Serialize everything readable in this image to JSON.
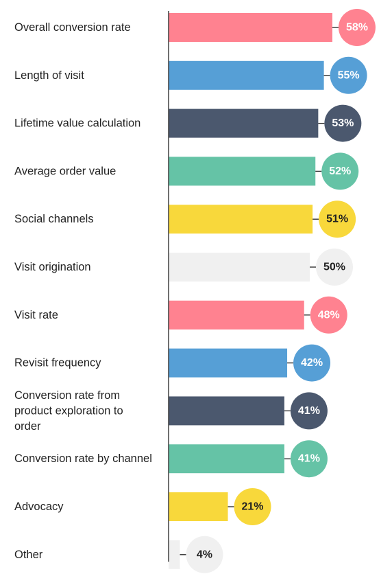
{
  "chart_data": {
    "type": "bar",
    "orientation": "horizontal",
    "value_suffix": "%",
    "xlim": [
      0,
      100
    ],
    "grid": false,
    "categories": [
      "Overall conversion rate",
      "Length of visit",
      "Lifetime value calculation",
      "Average order value",
      "Social channels",
      "Visit origination",
      "Visit rate",
      "Revisit frequency",
      "Conversion rate from product exploration to order",
      "Conversion rate by channel",
      "Advocacy",
      "Other"
    ],
    "label_lines": [
      [
        "Overall conversion rate"
      ],
      [
        "Length of visit"
      ],
      [
        "Lifetime value calculation"
      ],
      [
        "Average order value"
      ],
      [
        "Social channels"
      ],
      [
        "Visit origination"
      ],
      [
        "Visit rate"
      ],
      [
        "Revisit frequency"
      ],
      [
        "Conversion rate from",
        "product exploration to",
        "order"
      ],
      [
        "Conversion rate by channel"
      ],
      [
        "Advocacy"
      ],
      [
        "Other"
      ]
    ],
    "values": [
      58,
      55,
      53,
      52,
      51,
      50,
      48,
      42,
      41,
      41,
      21,
      4
    ],
    "value_labels": [
      "58%",
      "55%",
      "53%",
      "52%",
      "51%",
      "50%",
      "48%",
      "42%",
      "41%",
      "41%",
      "21%",
      "4%"
    ],
    "bar_colors": [
      "#ff8290",
      "#569fd6",
      "#4b586e",
      "#65c3a6",
      "#f8d83b",
      "#f0f0f0",
      "#ff8290",
      "#569fd6",
      "#4b586e",
      "#65c3a6",
      "#f8d83b",
      "#f0f0f0"
    ],
    "badge_text_colors": [
      "#ffffff",
      "#ffffff",
      "#ffffff",
      "#ffffff",
      "#222222",
      "#222222",
      "#ffffff",
      "#ffffff",
      "#ffffff",
      "#ffffff",
      "#222222",
      "#222222"
    ],
    "axis_color": "#333333",
    "label_color": "#222222"
  }
}
